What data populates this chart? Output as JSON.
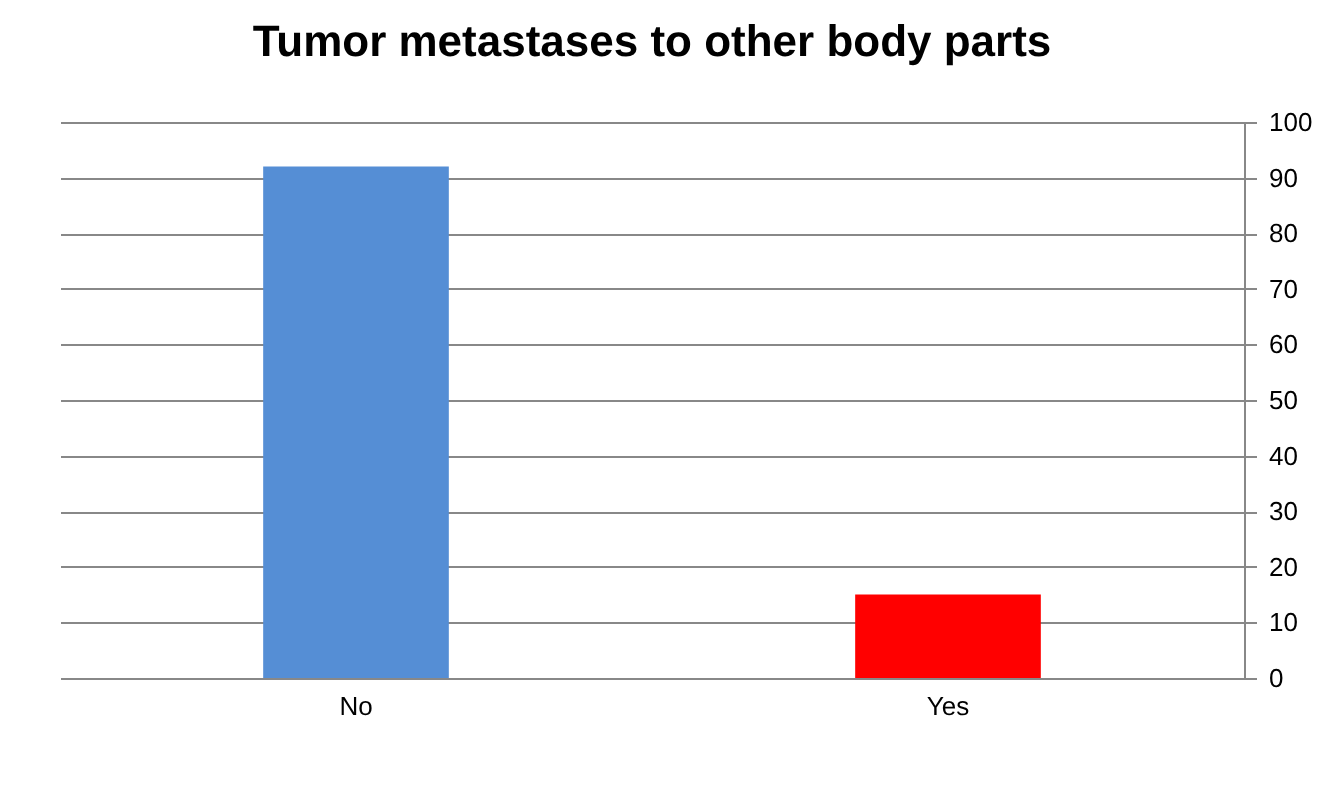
{
  "chart_data": {
    "type": "bar",
    "title": "Tumor metastases to other body parts",
    "categories": [
      "No",
      "Yes"
    ],
    "values": [
      92,
      15
    ],
    "colors": [
      "#558ed5",
      "#ff0000"
    ],
    "ylim": [
      0,
      100
    ],
    "yticks": [
      0,
      10,
      20,
      30,
      40,
      50,
      60,
      70,
      80,
      90,
      100
    ],
    "grid": "y",
    "legend": false
  }
}
